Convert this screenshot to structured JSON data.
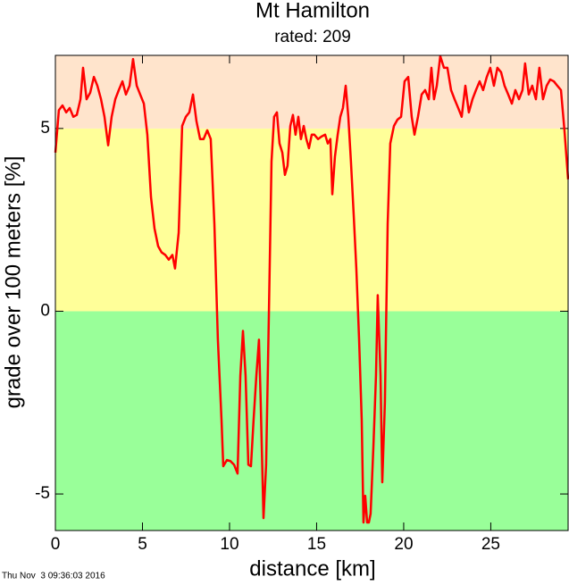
{
  "chart_data": {
    "type": "line",
    "title": "Mt Hamilton",
    "subtitle": "rated: 209",
    "x_label": "distance [km]",
    "y_label": "grade over 100 meters [%]",
    "timestamp": "Thu Nov  3 09:36:03 2016",
    "xlim": [
      0,
      29.44
    ],
    "ylim": [
      -6,
      7
    ],
    "xticks": [
      0,
      5,
      10,
      15,
      20,
      25
    ],
    "yticks": [
      -5,
      0,
      5
    ],
    "bands": [
      {
        "from": -6,
        "to": 0,
        "color": "#99ff99"
      },
      {
        "from": 0,
        "to": 5,
        "color": "#ffff99"
      },
      {
        "from": 5,
        "to": 7,
        "color": "#ffe4cc"
      }
    ],
    "x": [
      0,
      0.2,
      0.41,
      0.62,
      0.82,
      1.03,
      1.23,
      1.44,
      1.59,
      1.79,
      2.0,
      2.21,
      2.41,
      2.62,
      2.82,
      3.03,
      3.23,
      3.44,
      3.64,
      3.85,
      4.05,
      4.26,
      4.46,
      4.67,
      4.87,
      5.08,
      5.28,
      5.49,
      5.69,
      5.9,
      6.1,
      6.31,
      6.51,
      6.72,
      6.87,
      7.08,
      7.28,
      7.49,
      7.69,
      7.9,
      8.1,
      8.31,
      8.51,
      8.72,
      8.92,
      9.13,
      9.33,
      9.54,
      9.64,
      9.85,
      10.05,
      10.26,
      10.46,
      10.62,
      10.77,
      10.92,
      11.08,
      11.23,
      11.38,
      11.54,
      11.69,
      11.79,
      11.95,
      12.1,
      12.26,
      12.41,
      12.56,
      12.72,
      12.87,
      13.03,
      13.18,
      13.33,
      13.49,
      13.64,
      13.79,
      13.95,
      14.1,
      14.26,
      14.41,
      14.56,
      14.72,
      14.87,
      15.08,
      15.28,
      15.49,
      15.64,
      15.79,
      15.9,
      16.05,
      16.21,
      16.36,
      16.51,
      16.67,
      16.82,
      16.97,
      17.13,
      17.28,
      17.44,
      17.59,
      17.69,
      17.79,
      17.9,
      18.0,
      18.1,
      18.26,
      18.41,
      18.51,
      18.67,
      18.77,
      18.92,
      19.08,
      19.23,
      19.44,
      19.64,
      19.85,
      20.05,
      20.26,
      20.46,
      20.62,
      20.82,
      21.03,
      21.23,
      21.44,
      21.59,
      21.74,
      21.9,
      22.1,
      22.31,
      22.51,
      22.72,
      22.92,
      23.13,
      23.33,
      23.54,
      23.74,
      23.95,
      24.15,
      24.36,
      24.56,
      24.77,
      24.97,
      25.18,
      25.38,
      25.59,
      25.79,
      26.0,
      26.21,
      26.41,
      26.62,
      26.82,
      26.97,
      27.18,
      27.38,
      27.59,
      27.79,
      28.0,
      28.21,
      28.41,
      28.62,
      28.82,
      29.03,
      29.23,
      29.44
    ],
    "series": [
      {
        "name": "grade",
        "color": "#ff0000",
        "values": [
          4.34,
          5.5,
          5.63,
          5.44,
          5.56,
          5.32,
          5.37,
          5.8,
          6.66,
          5.8,
          5.98,
          6.41,
          6.17,
          5.8,
          5.32,
          4.54,
          5.32,
          5.8,
          6.05,
          6.29,
          5.93,
          6.17,
          6.9,
          6.17,
          5.93,
          5.68,
          4.83,
          3.12,
          2.27,
          1.78,
          1.61,
          1.54,
          1.41,
          1.54,
          1.17,
          2.15,
          5.07,
          5.32,
          5.44,
          5.93,
          5.2,
          4.71,
          4.71,
          4.95,
          4.71,
          2.39,
          -0.78,
          -2.98,
          -4.24,
          -4.07,
          -4.1,
          -4.2,
          -4.44,
          -1.76,
          -0.54,
          -1.76,
          -4.2,
          -4.24,
          -2.98,
          -1.76,
          -0.78,
          -2.49,
          -5.66,
          -4.2,
          -0.05,
          4.1,
          5.32,
          5.44,
          4.59,
          4.34,
          3.73,
          3.98,
          5.07,
          5.37,
          4.83,
          5.32,
          4.71,
          5.07,
          4.71,
          4.46,
          4.83,
          4.83,
          4.71,
          4.78,
          4.83,
          4.59,
          4.71,
          3.2,
          4.22,
          4.83,
          5.32,
          5.56,
          6.17,
          5.32,
          4.1,
          2.63,
          1.17,
          -0.78,
          -2.98,
          -5.78,
          -5.05,
          -5.78,
          -5.78,
          -5.54,
          -3.71,
          -1.76,
          0.44,
          -1.76,
          -4.68,
          -2.49,
          2.39,
          4.59,
          5.07,
          5.24,
          5.32,
          6.29,
          6.41,
          5.32,
          4.83,
          5.32,
          5.93,
          6.05,
          5.8,
          6.66,
          5.8,
          6.17,
          6.98,
          6.66,
          6.66,
          6.05,
          5.8,
          5.56,
          5.32,
          6.17,
          5.44,
          5.8,
          6.05,
          6.29,
          6.05,
          6.41,
          6.66,
          6.17,
          6.66,
          6.54,
          6.17,
          5.93,
          5.68,
          6.05,
          5.8,
          6.05,
          6.78,
          5.93,
          6.17,
          5.8,
          6.66,
          5.8,
          6.17,
          6.34,
          6.29,
          6.17,
          6.05,
          4.95,
          3.61
        ]
      }
    ]
  }
}
